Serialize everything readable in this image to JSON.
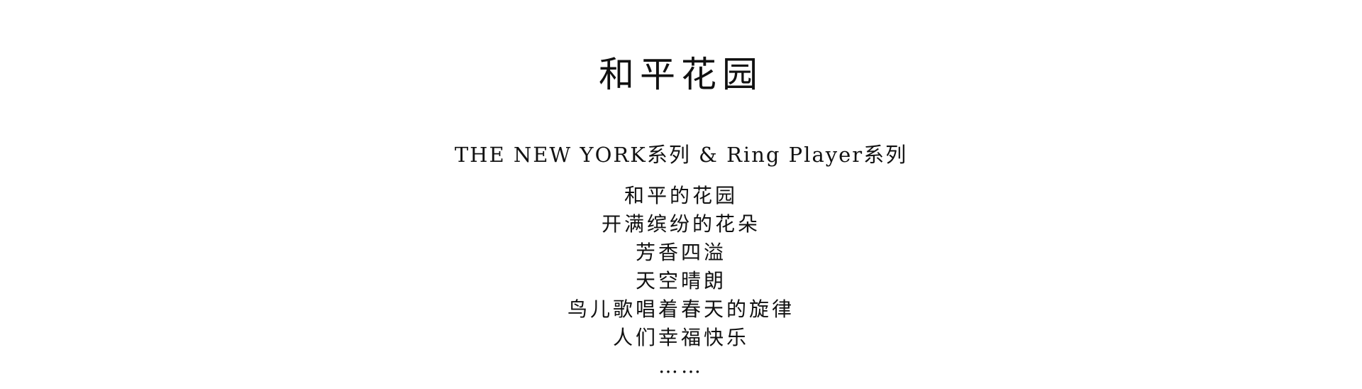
{
  "title": "和平花园",
  "subtitle": "THE NEW YORK系列 & Ring Player系列",
  "poem": [
    "和平的花园",
    "开满缤纷的花朵",
    "芳香四溢",
    "天空晴朗",
    "鸟儿歌唱着春天的旋律",
    "人们幸福快乐",
    "……"
  ],
  "colors": {
    "background": "#ffffff",
    "text": "#111111"
  }
}
